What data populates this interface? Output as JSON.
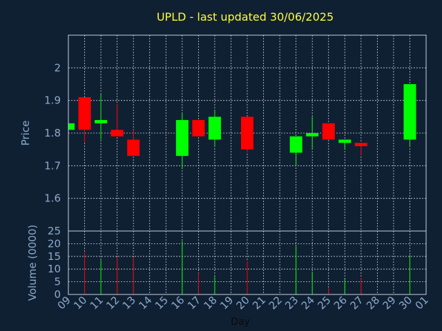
{
  "chart_data": {
    "type": "candlestick",
    "title": "UPLD - last updated 30/06/2025",
    "xlabel": "Day",
    "x_tick_labels": [
      "09",
      "10",
      "11",
      "12",
      "13",
      "14",
      "15",
      "16",
      "17",
      "18",
      "19",
      "20",
      "21",
      "22",
      "23",
      "24",
      "25",
      "26",
      "27",
      "28",
      "29",
      "30",
      "01"
    ],
    "grid": true,
    "colors": {
      "up": "#00ff00",
      "down": "#ff0000",
      "background": "#102033",
      "axis_text": "#8aaccc",
      "title": "#ffff33"
    },
    "price_panel": {
      "ylabel": "Price",
      "ylim": [
        1.5,
        2.1
      ],
      "yticks": [
        1.6,
        1.7,
        1.8,
        1.9,
        2.0
      ],
      "ytick_labels": [
        "1.6",
        "1.7",
        "1.8",
        "1.9",
        "2"
      ],
      "candles": [
        {
          "day": "09",
          "open": 1.81,
          "high": 1.83,
          "low": 1.81,
          "close": 1.83
        },
        {
          "day": "10",
          "open": 1.91,
          "high": 1.91,
          "low": 1.77,
          "close": 1.81
        },
        {
          "day": "11",
          "open": 1.83,
          "high": 1.92,
          "low": 1.78,
          "close": 1.84
        },
        {
          "day": "12",
          "open": 1.81,
          "high": 1.89,
          "low": 1.79,
          "close": 1.79
        },
        {
          "day": "13",
          "open": 1.78,
          "high": 1.81,
          "low": 1.73,
          "close": 1.73
        },
        {
          "day": "16",
          "open": 1.73,
          "high": 1.86,
          "low": 1.69,
          "close": 1.84
        },
        {
          "day": "17",
          "open": 1.84,
          "high": 1.84,
          "low": 1.79,
          "close": 1.79
        },
        {
          "day": "18",
          "open": 1.78,
          "high": 1.87,
          "low": 1.76,
          "close": 1.85
        },
        {
          "day": "20",
          "open": 1.85,
          "high": 1.85,
          "low": 1.74,
          "close": 1.75
        },
        {
          "day": "23",
          "open": 1.74,
          "high": 1.79,
          "low": 1.7,
          "close": 1.79
        },
        {
          "day": "24",
          "open": 1.79,
          "high": 1.85,
          "low": 1.75,
          "close": 1.8
        },
        {
          "day": "25",
          "open": 1.83,
          "high": 1.83,
          "low": 1.78,
          "close": 1.78
        },
        {
          "day": "26",
          "open": 1.77,
          "high": 1.78,
          "low": 1.75,
          "close": 1.78
        },
        {
          "day": "27",
          "open": 1.77,
          "high": 1.77,
          "low": 1.73,
          "close": 1.76
        },
        {
          "day": "30",
          "open": 1.78,
          "high": 1.95,
          "low": 1.76,
          "close": 1.95
        }
      ]
    },
    "volume_panel": {
      "ylabel": "Volume (0000)",
      "ylim": [
        0,
        25
      ],
      "yticks": [
        0,
        5,
        10,
        15,
        20,
        25
      ],
      "ytick_labels": [
        "0",
        "5",
        "10",
        "15",
        "20",
        "25"
      ],
      "bars": [
        {
          "day": "10",
          "value": 16.5,
          "direction": "down"
        },
        {
          "day": "11",
          "value": 13.5,
          "direction": "up"
        },
        {
          "day": "12",
          "value": 14.5,
          "direction": "down"
        },
        {
          "day": "13",
          "value": 14.5,
          "direction": "down"
        },
        {
          "day": "16",
          "value": 21,
          "direction": "up"
        },
        {
          "day": "17",
          "value": 8.5,
          "direction": "down"
        },
        {
          "day": "18",
          "value": 7,
          "direction": "up"
        },
        {
          "day": "20",
          "value": 13,
          "direction": "down"
        },
        {
          "day": "23",
          "value": 19,
          "direction": "up"
        },
        {
          "day": "24",
          "value": 9,
          "direction": "up"
        },
        {
          "day": "25",
          "value": 2.5,
          "direction": "down"
        },
        {
          "day": "26",
          "value": 6,
          "direction": "up"
        },
        {
          "day": "27",
          "value": 6.5,
          "direction": "down"
        },
        {
          "day": "30",
          "value": 15.5,
          "direction": "up"
        }
      ]
    }
  }
}
